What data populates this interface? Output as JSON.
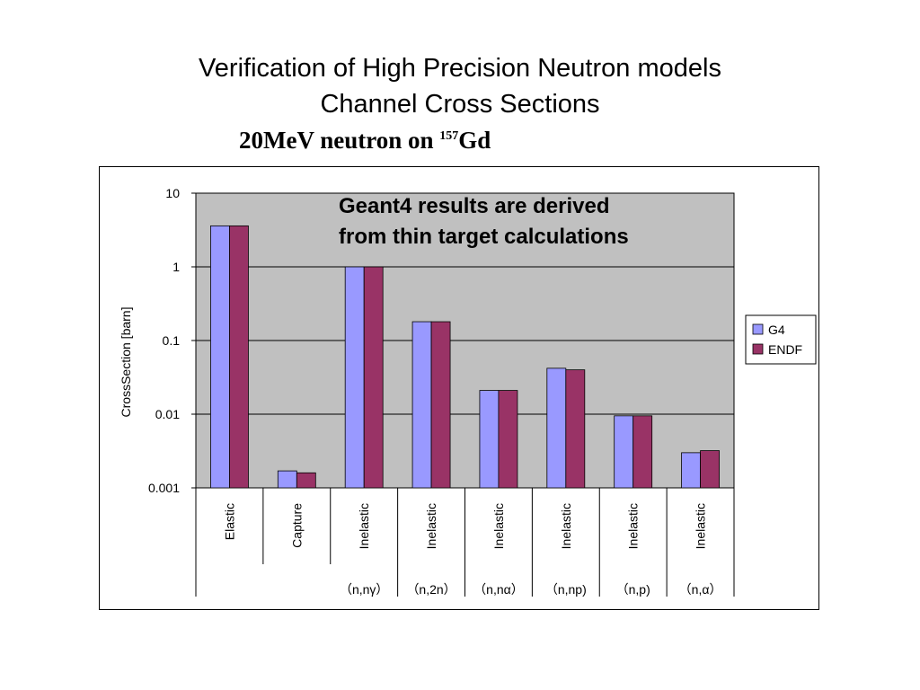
{
  "page": {
    "title_line1": "Verification  of High Precision Neutron models",
    "title_line2": "Channel Cross Sections",
    "subtitle_main": "20MeV neutron on ",
    "subtitle_sup": "157",
    "subtitle_tail": "Gd"
  },
  "chart_data": {
    "type": "bar",
    "ylabel": "CrossSection [barn]",
    "yscale": "log",
    "ylim": [
      0.001,
      10
    ],
    "yticks": [
      "10",
      "1",
      "0.1",
      "0.01",
      "0.001"
    ],
    "grid": true,
    "legend_position": "right",
    "annotation": [
      "Geant4 results are derived",
      "from thin target calculations"
    ],
    "categories": [
      {
        "label": "Elastic",
        "sublabel": ""
      },
      {
        "label": "Capture",
        "sublabel": ""
      },
      {
        "label": "Inelastic",
        "sublabel": "（n,nγ）"
      },
      {
        "label": "Inelastic",
        "sublabel": "（n,2n）"
      },
      {
        "label": "Inelastic",
        "sublabel": "（n,nα）"
      },
      {
        "label": "Inelastic",
        "sublabel": "（n,np)"
      },
      {
        "label": "Inelastic",
        "sublabel": "（n,p)"
      },
      {
        "label": "Inelastic",
        "sublabel": "（n,α）"
      }
    ],
    "series": [
      {
        "name": "G4",
        "color": "#9999ff",
        "values": [
          3.6,
          0.0017,
          1.0,
          0.18,
          0.021,
          0.042,
          0.0095,
          0.003
        ]
      },
      {
        "name": "ENDF",
        "color": "#993366",
        "values": [
          3.6,
          0.0016,
          1.0,
          0.18,
          0.021,
          0.04,
          0.0095,
          0.0032
        ]
      }
    ],
    "plot_background": "#c0c0c0"
  }
}
